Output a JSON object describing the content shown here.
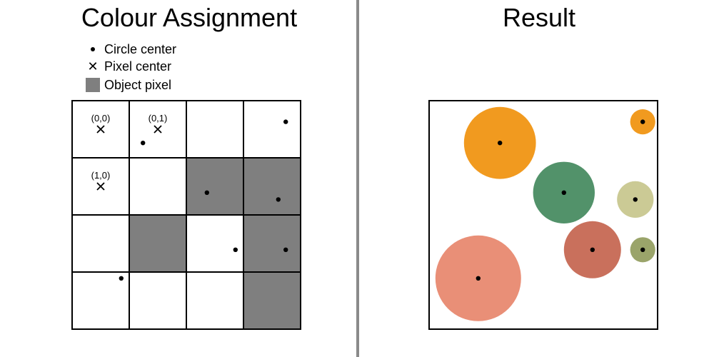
{
  "left_panel": {
    "title": "Colour Assignment",
    "legend": [
      {
        "symbol": "dot",
        "label": "Circle center"
      },
      {
        "symbol": "cross",
        "label": "Pixel center"
      },
      {
        "symbol": "square",
        "label": "Object pixel"
      }
    ],
    "grid": {
      "rows": 4,
      "cols": 4,
      "object_pixels": [
        [
          1,
          2
        ],
        [
          1,
          3
        ],
        [
          2,
          1
        ],
        [
          2,
          3
        ],
        [
          3,
          3
        ]
      ],
      "pixel_center_labels": [
        {
          "row": 0,
          "col": 0,
          "text": "(0,0)"
        },
        {
          "row": 0,
          "col": 1,
          "text": "(0,1)"
        },
        {
          "row": 1,
          "col": 0,
          "text": "(1,0)"
        }
      ],
      "circle_centers": [
        {
          "row": 0.37,
          "col": 3.74
        },
        {
          "row": 0.74,
          "col": 1.24
        },
        {
          "row": 1.61,
          "col": 2.36
        },
        {
          "row": 1.73,
          "col": 3.61
        },
        {
          "row": 2.61,
          "col": 2.86
        },
        {
          "row": 2.61,
          "col": 3.74
        },
        {
          "row": 3.11,
          "col": 0.86
        }
      ]
    },
    "colors": {
      "object": "#7f7f7f",
      "grid_line": "#000000"
    }
  },
  "right_panel": {
    "title": "Result",
    "view_range": {
      "x": [
        0,
        4
      ],
      "y": [
        0,
        4
      ]
    },
    "circles": [
      {
        "cx": 1.24,
        "cy": 0.74,
        "r": 0.63,
        "color": "#f19a1f"
      },
      {
        "cx": 3.74,
        "cy": 0.37,
        "r": 0.22,
        "color": "#f19a1f"
      },
      {
        "cx": 2.36,
        "cy": 1.61,
        "r": 0.54,
        "color": "#52926a"
      },
      {
        "cx": 3.61,
        "cy": 1.73,
        "r": 0.32,
        "color": "#cbca95"
      },
      {
        "cx": 2.86,
        "cy": 2.61,
        "r": 0.5,
        "color": "#c9705c"
      },
      {
        "cx": 3.74,
        "cy": 2.61,
        "r": 0.22,
        "color": "#9aa46a"
      },
      {
        "cx": 0.86,
        "cy": 3.11,
        "r": 0.75,
        "color": "#e98f77"
      }
    ]
  }
}
